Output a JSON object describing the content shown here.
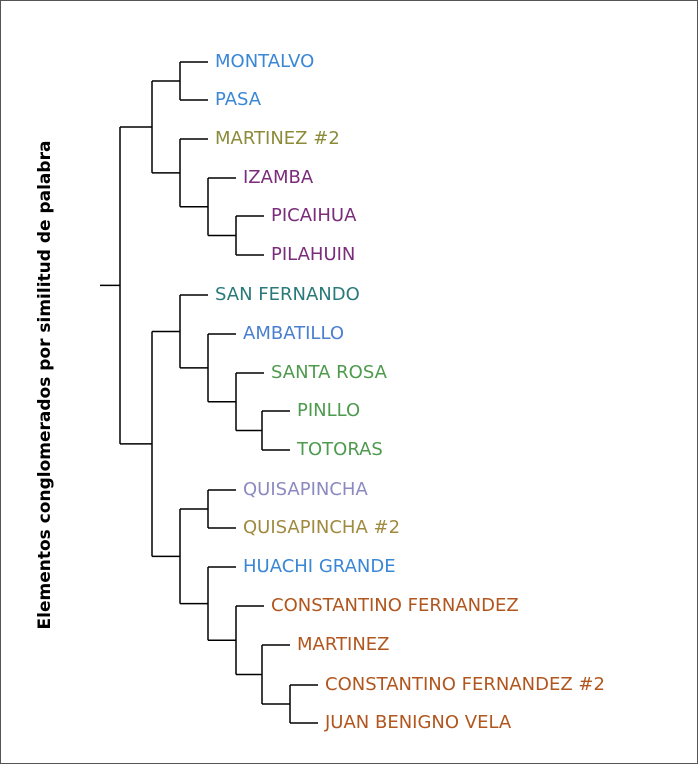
{
  "axis_label": "Elementos conglomerados por similitud de palabra",
  "leaves": [
    {
      "name": "MONTALVO",
      "color": "#3a87d6"
    },
    {
      "name": "PASA",
      "color": "#3a87d6"
    },
    {
      "name": "MARTINEZ #2",
      "color": "#8b8b3a"
    },
    {
      "name": "IZAMBA",
      "color": "#7b2d7b"
    },
    {
      "name": "PICAIHUA",
      "color": "#7b2d7b"
    },
    {
      "name": "PILAHUIN",
      "color": "#7b2d7b"
    },
    {
      "name": "SAN FERNANDO",
      "color": "#2a7a7a"
    },
    {
      "name": "AMBATILLO",
      "color": "#4a7fd0"
    },
    {
      "name": "SANTA ROSA",
      "color": "#4e9a4e"
    },
    {
      "name": "PINLLO",
      "color": "#4e9a4e"
    },
    {
      "name": "TOTORAS",
      "color": "#4e9a4e"
    },
    {
      "name": "QUISAPINCHA",
      "color": "#8a8ac0"
    },
    {
      "name": "QUISAPINCHA #2",
      "color": "#a08a40"
    },
    {
      "name": "HUACHI GRANDE",
      "color": "#3a87d6"
    },
    {
      "name": "CONSTANTINO FERNANDEZ",
      "color": "#b0561e"
    },
    {
      "name": "MARTINEZ",
      "color": "#b0561e"
    },
    {
      "name": "CONSTANTINO FERNANDEZ #2",
      "color": "#b0561e"
    },
    {
      "name": "JUAN BENIGNO VELA",
      "color": "#b0561e"
    }
  ]
}
